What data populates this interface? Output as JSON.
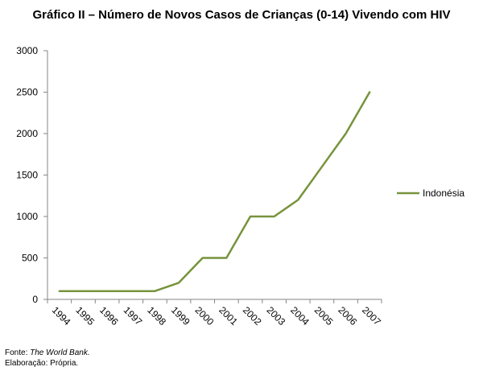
{
  "title": "Gráfico II – Número de Novos Casos de Crianças (0-14) Vivendo com HIV",
  "notes": {
    "source_prefix": "Fonte: ",
    "source_name": "The World Bank.",
    "elaboration": "Elaboração: Própria."
  },
  "colors": {
    "series": "#77933c",
    "axis": "#868686"
  },
  "chart_data": {
    "type": "line",
    "title": "Gráfico II – Número de Novos Casos de Crianças (0-14) Vivendo com HIV",
    "xlabel": "",
    "ylabel": "",
    "x": [
      "1994",
      "1995",
      "1996",
      "1997",
      "1998",
      "1999",
      "2000",
      "2001",
      "2002",
      "2003",
      "2004",
      "2005",
      "2006",
      "2007"
    ],
    "series": [
      {
        "name": "Indonésia",
        "values": [
          100,
          100,
          100,
          100,
          100,
          200,
          500,
          500,
          1000,
          1000,
          1200,
          1600,
          2000,
          2500
        ]
      }
    ],
    "ylim": [
      0,
      3000
    ],
    "yticks": [
      "0",
      "500",
      "1000",
      "1500",
      "2000",
      "2500",
      "3000"
    ],
    "grid": false,
    "legend": "right"
  }
}
